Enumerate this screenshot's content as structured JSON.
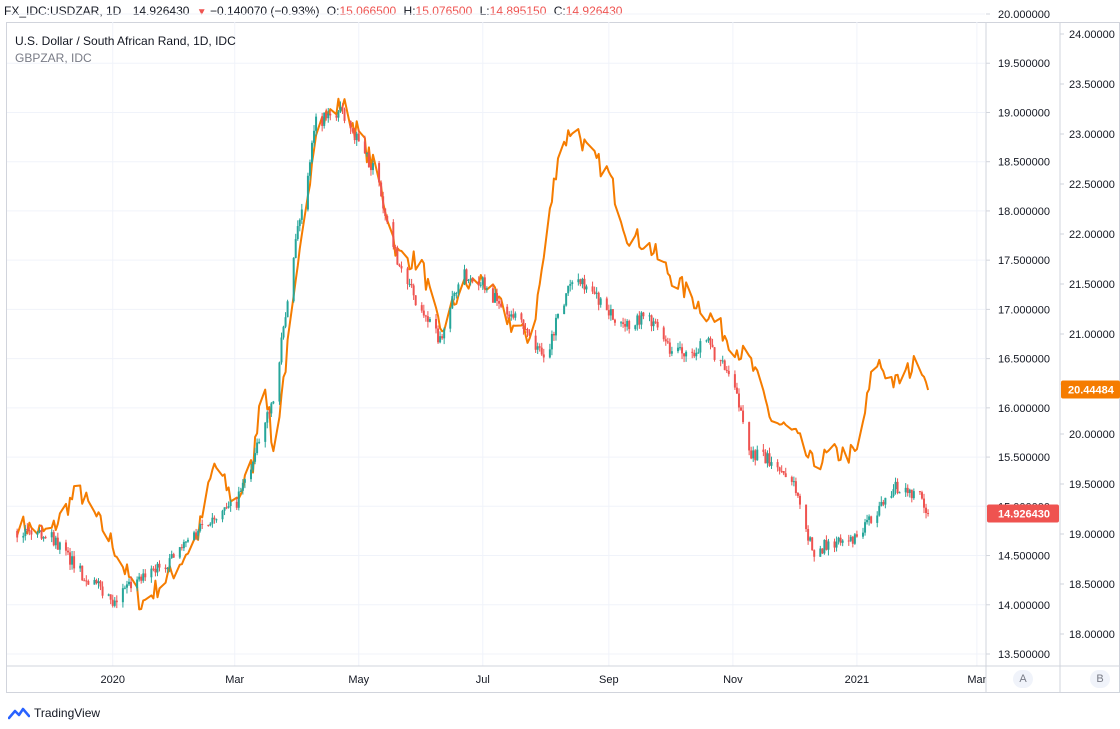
{
  "header": {
    "symbol": "FX_IDC:USDZAR, 1D",
    "last": "14.926430",
    "change": "−0.140070 (−0.93%)",
    "o_label": "O:",
    "o_value": "15.066500",
    "h_label": "H:",
    "h_value": "15.076500",
    "l_label": "L:",
    "l_value": "14.895150",
    "c_label": "C:",
    "c_value": "14.926430"
  },
  "legend": {
    "main": "U.S. Dollar / South African Rand, 1D, IDC",
    "compare": "GBPZAR, IDC"
  },
  "axis_buttons": {
    "a": "A",
    "b": "B"
  },
  "branding": "TradingView",
  "colors": {
    "up": "#26a69a",
    "down": "#ef5350",
    "line": "#f57c00",
    "grid": "#f0f3fa"
  },
  "chart_data": {
    "type": "candlestick",
    "series": [
      {
        "name": "USDZAR",
        "axis": "right-inner",
        "x": [
          "2019-11-15",
          "2019-12-01",
          "2019-12-15",
          "2020-01-01",
          "2020-01-15",
          "2020-02-01",
          "2020-02-15",
          "2020-03-01",
          "2020-03-10",
          "2020-03-20",
          "2020-04-01",
          "2020-04-10",
          "2020-04-23",
          "2020-05-01",
          "2020-05-10",
          "2020-05-20",
          "2020-06-01",
          "2020-06-10",
          "2020-06-20",
          "2020-07-01",
          "2020-07-10",
          "2020-07-20",
          "2020-08-01",
          "2020-08-05",
          "2020-08-15",
          "2020-09-01",
          "2020-09-10",
          "2020-09-20",
          "2020-10-01",
          "2020-10-10",
          "2020-10-20",
          "2020-11-01",
          "2020-11-10",
          "2020-11-20",
          "2020-12-01",
          "2020-12-10",
          "2020-12-20",
          "2021-01-01",
          "2021-01-10",
          "2021-01-20",
          "2021-02-01",
          "2021-02-05"
        ],
        "close": [
          14.75,
          14.72,
          14.35,
          14.05,
          14.25,
          14.5,
          14.85,
          15.0,
          15.45,
          16.1,
          17.8,
          18.9,
          19.0,
          18.7,
          18.35,
          17.5,
          16.95,
          16.7,
          17.35,
          17.3,
          17.0,
          16.85,
          16.5,
          16.8,
          17.4,
          16.95,
          16.85,
          16.95,
          16.6,
          16.55,
          16.65,
          16.25,
          15.55,
          15.45,
          15.25,
          14.55,
          14.62,
          14.65,
          14.95,
          15.2,
          15.1,
          14.93
        ],
        "ylim": [
          13.5,
          20.0
        ]
      },
      {
        "name": "GBPZAR",
        "axis": "right-outer",
        "x": [
          "2019-11-15",
          "2019-12-01",
          "2019-12-15",
          "2020-01-01",
          "2020-01-15",
          "2020-02-01",
          "2020-02-12",
          "2020-02-20",
          "2020-03-01",
          "2020-03-10",
          "2020-03-15",
          "2020-03-20",
          "2020-04-01",
          "2020-04-10",
          "2020-04-23",
          "2020-05-01",
          "2020-05-10",
          "2020-05-20",
          "2020-06-01",
          "2020-06-10",
          "2020-06-20",
          "2020-07-01",
          "2020-07-15",
          "2020-07-25",
          "2020-08-01",
          "2020-08-07",
          "2020-08-15",
          "2020-08-22",
          "2020-09-01",
          "2020-09-10",
          "2020-09-20",
          "2020-10-01",
          "2020-10-10",
          "2020-10-20",
          "2020-11-01",
          "2020-11-10",
          "2020-11-20",
          "2020-12-01",
          "2020-12-10",
          "2020-12-20",
          "2021-01-01",
          "2021-01-10",
          "2021-01-20",
          "2021-02-01",
          "2021-02-05"
        ],
        "values": [
          19.1,
          19.0,
          19.45,
          18.9,
          18.3,
          18.65,
          19.0,
          19.7,
          19.3,
          19.7,
          20.7,
          19.8,
          21.6,
          23.1,
          23.3,
          23.0,
          22.6,
          21.8,
          21.7,
          21.0,
          21.45,
          21.55,
          21.1,
          20.95,
          21.9,
          22.8,
          23.1,
          22.8,
          22.6,
          22.0,
          21.9,
          21.6,
          21.4,
          21.2,
          20.9,
          20.7,
          20.15,
          20.0,
          19.7,
          19.8,
          19.8,
          20.75,
          20.5,
          20.75,
          20.44
        ],
        "ylim": [
          17.8,
          24.2
        ]
      }
    ],
    "x_ticks": [
      "2020",
      "Mar",
      "May",
      "Jul",
      "Sep",
      "Nov",
      "2021",
      "Mar"
    ],
    "y_ticks_inner": [
      "13.500000",
      "14.000000",
      "14.500000",
      "15.000000",
      "15.500000",
      "16.000000",
      "16.500000",
      "17.000000",
      "17.500000",
      "18.000000",
      "18.500000",
      "19.000000",
      "19.500000",
      "20.000000"
    ],
    "y_ticks_outer": [
      "18.00000",
      "18.50000",
      "19.00000",
      "19.50000",
      "20.00000",
      "20.50000",
      "21.00000",
      "21.50000",
      "22.00000",
      "22.50000",
      "23.00000",
      "23.50000",
      "24.00000"
    ],
    "price_tags": {
      "inner": "14.926430",
      "outer": "20.44484"
    },
    "grid": true
  }
}
